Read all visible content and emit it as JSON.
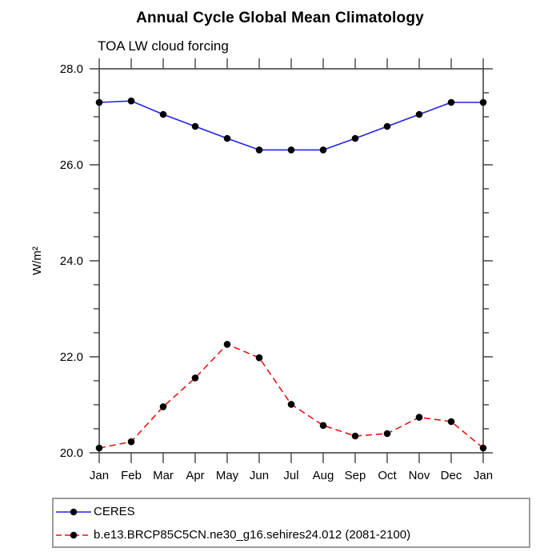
{
  "page": {
    "background": "#ffffff"
  },
  "colors": {
    "axis": "#444444",
    "text": "#000000",
    "legend_border": "#9b9b9b"
  },
  "chart_data": {
    "type": "line",
    "title": "Annual Cycle Global Mean Climatology",
    "subtitle": "TOA LW cloud forcing",
    "ylabel": "W/m²",
    "xlabel": "",
    "categories": [
      "Jan",
      "Feb",
      "Mar",
      "Apr",
      "May",
      "Jun",
      "Jul",
      "Aug",
      "Sep",
      "Oct",
      "Nov",
      "Dec",
      "Jan"
    ],
    "ylim": [
      20.0,
      28.0
    ],
    "ytick_step": 2.0,
    "yminor_step": 0.5,
    "ytick_labels": [
      "20.0",
      "22.0",
      "24.0",
      "26.0",
      "28.0"
    ],
    "grid": "off",
    "legend_position": "bottom-left-box",
    "series": [
      {
        "name": "CERES",
        "color": "#2222e6",
        "line_style": "solid",
        "marker": "filled-circle",
        "marker_color": "#000000",
        "values": [
          27.3,
          27.33,
          27.05,
          26.8,
          26.55,
          26.31,
          26.31,
          26.31,
          26.55,
          26.8,
          27.05,
          27.3,
          27.3
        ]
      },
      {
        "name": "b.e13.BRCP85C5CN.ne30_g16.sehires24.012 (2081-2100)",
        "color": "#f01010",
        "line_style": "dashed",
        "marker": "filled-circle",
        "marker_color": "#000000",
        "values": [
          20.1,
          20.23,
          20.96,
          21.56,
          22.26,
          21.98,
          21.01,
          20.57,
          20.35,
          20.4,
          20.74,
          20.65,
          20.1
        ]
      }
    ]
  }
}
